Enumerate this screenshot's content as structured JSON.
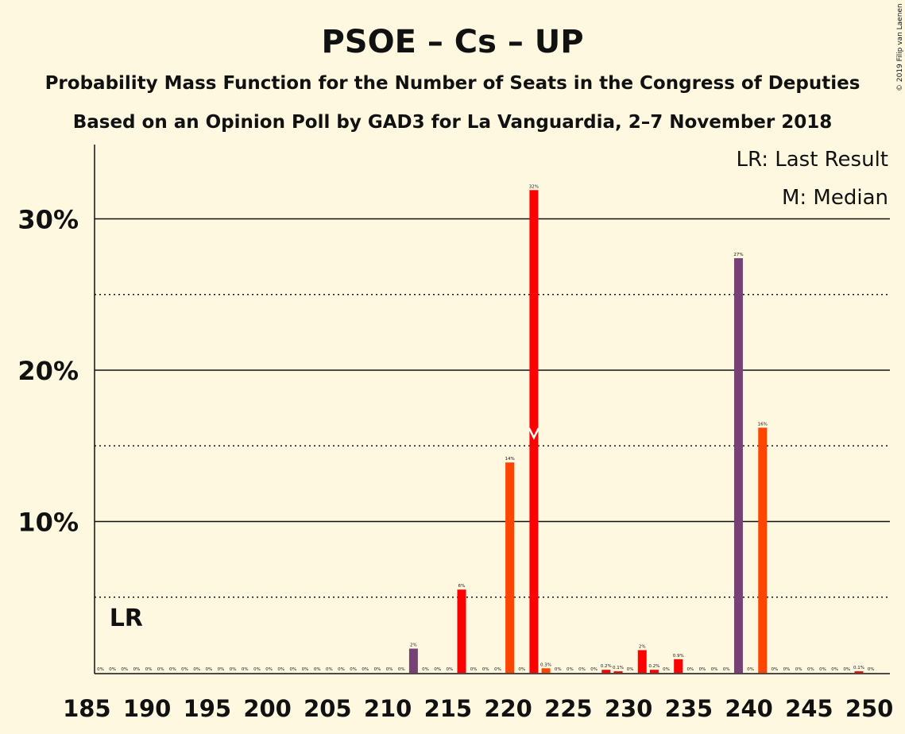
{
  "chart_data": {
    "type": "bar",
    "title": "PSOE – Cs – UP",
    "subtitle": "Probability Mass Function for the Number of Seats in the Congress of Deputies",
    "subtitle2": "Based on an Opinion Poll by GAD3 for La Vanguardia, 2–7 November 2018",
    "copyright": "© 2019 Filip van Laenen",
    "legend_lr": "LR: Last Result",
    "legend_median": "M: Median",
    "lr_label": "LR",
    "lr_seat": 188,
    "median_seat": 222,
    "xlim": [
      185,
      250
    ],
    "ylim": [
      0,
      35
    ],
    "x_ticks": [
      185,
      190,
      195,
      200,
      205,
      210,
      215,
      220,
      225,
      230,
      235,
      240,
      245,
      250
    ],
    "x_tick_labels": [
      "185",
      "190",
      "195",
      "200",
      "205",
      "210",
      "215",
      "220",
      "225",
      "230",
      "235",
      "240",
      "245",
      "250"
    ],
    "y_ticks": [
      10,
      20,
      30
    ],
    "y_tick_labels": [
      "10%",
      "20%",
      "30%"
    ],
    "y_dotted": [
      5,
      15,
      25
    ],
    "colors": {
      "red": "#ff0000",
      "orange": "#ff4500",
      "purple": "#764276",
      "axis": "#111111",
      "background": "#fff8e1"
    },
    "bars": [
      {
        "seat": 186,
        "value": 0,
        "label": "0%",
        "color": "red"
      },
      {
        "seat": 187,
        "value": 0,
        "label": "0%",
        "color": "red"
      },
      {
        "seat": 188,
        "value": 0,
        "label": "0%",
        "color": "red"
      },
      {
        "seat": 189,
        "value": 0,
        "label": "0%",
        "color": "red"
      },
      {
        "seat": 190,
        "value": 0,
        "label": "0%",
        "color": "red"
      },
      {
        "seat": 191,
        "value": 0,
        "label": "0%",
        "color": "red"
      },
      {
        "seat": 192,
        "value": 0,
        "label": "0%",
        "color": "red"
      },
      {
        "seat": 193,
        "value": 0,
        "label": "0%",
        "color": "red"
      },
      {
        "seat": 194,
        "value": 0,
        "label": "0%",
        "color": "red"
      },
      {
        "seat": 195,
        "value": 0,
        "label": "0%",
        "color": "red"
      },
      {
        "seat": 196,
        "value": 0,
        "label": "0%",
        "color": "red"
      },
      {
        "seat": 197,
        "value": 0,
        "label": "0%",
        "color": "red"
      },
      {
        "seat": 198,
        "value": 0,
        "label": "0%",
        "color": "red"
      },
      {
        "seat": 199,
        "value": 0,
        "label": "0%",
        "color": "red"
      },
      {
        "seat": 200,
        "value": 0,
        "label": "0%",
        "color": "red"
      },
      {
        "seat": 201,
        "value": 0,
        "label": "0%",
        "color": "red"
      },
      {
        "seat": 202,
        "value": 0,
        "label": "0%",
        "color": "red"
      },
      {
        "seat": 203,
        "value": 0,
        "label": "0%",
        "color": "red"
      },
      {
        "seat": 204,
        "value": 0,
        "label": "0%",
        "color": "red"
      },
      {
        "seat": 205,
        "value": 0,
        "label": "0%",
        "color": "red"
      },
      {
        "seat": 206,
        "value": 0,
        "label": "0%",
        "color": "red"
      },
      {
        "seat": 207,
        "value": 0,
        "label": "0%",
        "color": "red"
      },
      {
        "seat": 208,
        "value": 0,
        "label": "0%",
        "color": "red"
      },
      {
        "seat": 209,
        "value": 0,
        "label": "0%",
        "color": "red"
      },
      {
        "seat": 210,
        "value": 0,
        "label": "0%",
        "color": "red"
      },
      {
        "seat": 211,
        "value": 0,
        "label": "0%",
        "color": "red"
      },
      {
        "seat": 212,
        "value": 1.6,
        "label": "2%",
        "color": "purple"
      },
      {
        "seat": 213,
        "value": 0,
        "label": "0%",
        "color": "red"
      },
      {
        "seat": 214,
        "value": 0,
        "label": "0%",
        "color": "red"
      },
      {
        "seat": 215,
        "value": 0,
        "label": "0%",
        "color": "red"
      },
      {
        "seat": 216,
        "value": 5.5,
        "label": "6%",
        "color": "red"
      },
      {
        "seat": 217,
        "value": 0,
        "label": "0%",
        "color": "red"
      },
      {
        "seat": 218,
        "value": 0,
        "label": "0%",
        "color": "red"
      },
      {
        "seat": 219,
        "value": 0,
        "label": "0%",
        "color": "red"
      },
      {
        "seat": 220,
        "value": 13.9,
        "label": "14%",
        "color": "orange"
      },
      {
        "seat": 221,
        "value": 0,
        "label": "0%",
        "color": "red"
      },
      {
        "seat": 222,
        "value": 31.9,
        "label": "32%",
        "color": "red"
      },
      {
        "seat": 223,
        "value": 0.3,
        "label": "0.3%",
        "color": "orange"
      },
      {
        "seat": 224,
        "value": 0,
        "label": "0%",
        "color": "red"
      },
      {
        "seat": 225,
        "value": 0,
        "label": "0%",
        "color": "red"
      },
      {
        "seat": 226,
        "value": 0,
        "label": "0%",
        "color": "red"
      },
      {
        "seat": 227,
        "value": 0,
        "label": "0%",
        "color": "red"
      },
      {
        "seat": 228,
        "value": 0.2,
        "label": "0.2%",
        "color": "red"
      },
      {
        "seat": 229,
        "value": 0.1,
        "label": "0.1%",
        "color": "red"
      },
      {
        "seat": 230,
        "value": 0,
        "label": "0%",
        "color": "red"
      },
      {
        "seat": 231,
        "value": 1.5,
        "label": "2%",
        "color": "red"
      },
      {
        "seat": 232,
        "value": 0.2,
        "label": "0.2%",
        "color": "red"
      },
      {
        "seat": 233,
        "value": 0,
        "label": "0%",
        "color": "red"
      },
      {
        "seat": 234,
        "value": 0.9,
        "label": "0.9%",
        "color": "red"
      },
      {
        "seat": 235,
        "value": 0,
        "label": "0%",
        "color": "red"
      },
      {
        "seat": 236,
        "value": 0,
        "label": "0%",
        "color": "red"
      },
      {
        "seat": 237,
        "value": 0,
        "label": "0%",
        "color": "red"
      },
      {
        "seat": 238,
        "value": 0,
        "label": "0%",
        "color": "red"
      },
      {
        "seat": 239,
        "value": 27.4,
        "label": "27%",
        "color": "purple"
      },
      {
        "seat": 240,
        "value": 0,
        "label": "0%",
        "color": "red"
      },
      {
        "seat": 241,
        "value": 16.2,
        "label": "16%",
        "color": "orange"
      },
      {
        "seat": 242,
        "value": 0,
        "label": "0%",
        "color": "red"
      },
      {
        "seat": 243,
        "value": 0,
        "label": "0%",
        "color": "red"
      },
      {
        "seat": 244,
        "value": 0,
        "label": "0%",
        "color": "red"
      },
      {
        "seat": 245,
        "value": 0,
        "label": "0%",
        "color": "red"
      },
      {
        "seat": 246,
        "value": 0,
        "label": "0%",
        "color": "red"
      },
      {
        "seat": 247,
        "value": 0,
        "label": "0%",
        "color": "red"
      },
      {
        "seat": 248,
        "value": 0,
        "label": "0%",
        "color": "red"
      },
      {
        "seat": 249,
        "value": 0.1,
        "label": "0.1%",
        "color": "red"
      },
      {
        "seat": 250,
        "value": 0,
        "label": "0%",
        "color": "red"
      }
    ]
  }
}
